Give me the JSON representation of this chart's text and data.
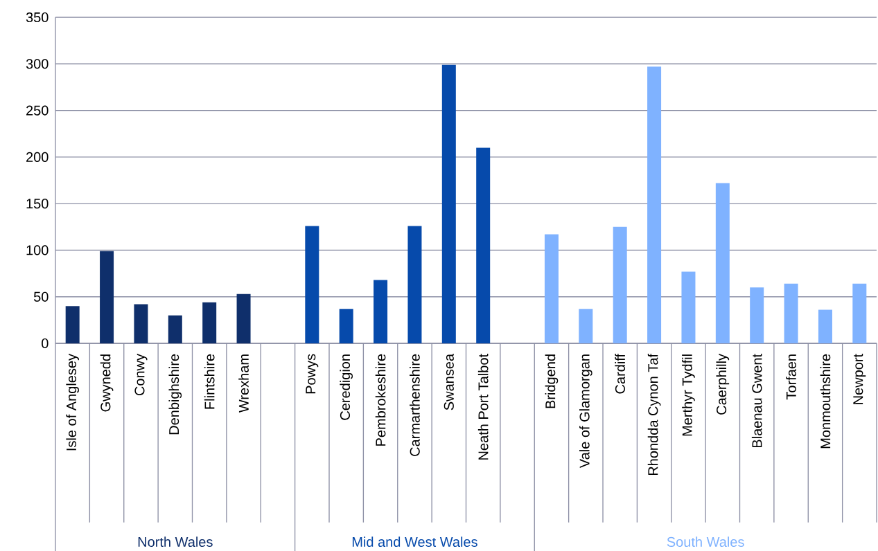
{
  "chart_data": {
    "type": "bar",
    "categories": [
      "Isle of Anglesey",
      "Gwynedd",
      "Conwy",
      "Denbighshire",
      "Flintshire",
      "Wrexham",
      null,
      "Powys",
      "Ceredigion",
      "Pembrokeshire",
      "Carmarthenshire",
      "Swansea",
      "Neath Port Talbot",
      null,
      "Bridgend",
      "Vale of Glamorgan",
      "Cardiff",
      "Rhondda Cynon Taf",
      "Merthyr Tydfil",
      "Caerphilly",
      "Blaenau Gwent",
      "Torfaen",
      "Monmouthshire",
      "Newport"
    ],
    "series": [
      {
        "name": "North Wales",
        "color": "#0f2f6b",
        "values": [
          40,
          99,
          42,
          30,
          44,
          53,
          null,
          null,
          null,
          null,
          null,
          null,
          null,
          null,
          null,
          null,
          null,
          null,
          null,
          null,
          null,
          null,
          null,
          null
        ]
      },
      {
        "name": "Mid and West Wales",
        "color": "#064aab",
        "values": [
          null,
          null,
          null,
          null,
          null,
          null,
          null,
          126,
          37,
          68,
          126,
          299,
          210,
          null,
          null,
          null,
          null,
          null,
          null,
          null,
          null,
          null,
          null,
          null
        ]
      },
      {
        "name": "South Wales",
        "color": "#7fb2ff",
        "values": [
          null,
          null,
          null,
          null,
          null,
          null,
          null,
          null,
          null,
          null,
          null,
          null,
          null,
          null,
          117,
          37,
          125,
          297,
          77,
          172,
          60,
          64,
          36,
          64
        ]
      }
    ],
    "ylim": [
      0,
      350
    ],
    "yticks": [
      0,
      50,
      100,
      150,
      200,
      250,
      300,
      350
    ],
    "grid": "y"
  }
}
